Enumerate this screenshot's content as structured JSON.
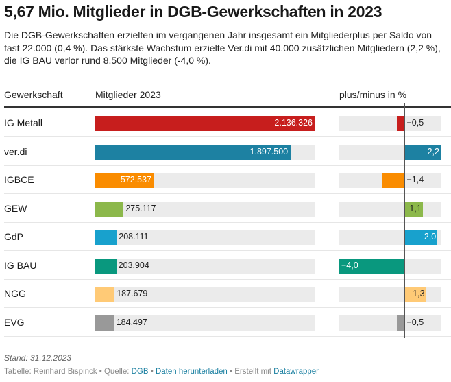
{
  "title": "5,67 Mio. Mitglieder in DGB-Gewerkschaften in 2023",
  "description": "Die DGB-Gewerkschaften erzielten im vergangenen Jahr insgesamt ein Mitgliederplus per Saldo von fast 22.000 (0,4 %). Das stärkste Wachstum erzielte Ver.di mit 40.000 zusätzlichen Mitgliedern (2,2 %), die IG BAU verlor rund 8.500 Mitglieder (-4,0 %).",
  "headers": {
    "union": "Gewerkschaft",
    "members": "Mitglieder 2023",
    "change": "plus/minus in %"
  },
  "footer": {
    "stand": "Stand: 31.12.2023",
    "table_by": "Tabelle: Reinhard Bispinck",
    "source_label": "Quelle:",
    "source_link": "DGB",
    "download_link": "Daten herunterladen",
    "created_label": "Erstellt mit",
    "created_link": "Datawrapper",
    "separator": "•"
  },
  "chart_data": {
    "type": "table",
    "title": "5,67 Mio. Mitglieder in DGB-Gewerkschaften in 2023",
    "columns": [
      "Gewerkschaft",
      "Mitglieder 2023",
      "plus/minus in %"
    ],
    "members_range": [
      0,
      2136326
    ],
    "change_range": [
      -4.0,
      2.2
    ],
    "rows": [
      {
        "name": "IG Metall",
        "members": 2136326,
        "members_label": "2.136.326",
        "change": -0.5,
        "change_label": "−0,5",
        "color": "#c71e1d"
      },
      {
        "name": "ver.di",
        "members": 1897500,
        "members_label": "1.897.500",
        "change": 2.2,
        "change_label": "2,2",
        "color": "#1d81a2"
      },
      {
        "name": "IGBCE",
        "members": 572537,
        "members_label": "572.537",
        "change": -1.4,
        "change_label": "−1,4",
        "color": "#fa8c00"
      },
      {
        "name": "GEW",
        "members": 275117,
        "members_label": "275.117",
        "change": 1.1,
        "change_label": "1,1",
        "color": "#8cb84b"
      },
      {
        "name": "GdP",
        "members": 208111,
        "members_label": "208.111",
        "change": 2.0,
        "change_label": "2,0",
        "color": "#18a1cd"
      },
      {
        "name": "IG BAU",
        "members": 203904,
        "members_label": "203.904",
        "change": -4.0,
        "change_label": "−4,0",
        "color": "#09987e"
      },
      {
        "name": "NGG",
        "members": 187679,
        "members_label": "187.679",
        "change": 1.3,
        "change_label": "1,3",
        "color": "#ffca76"
      },
      {
        "name": "EVG",
        "members": 184497,
        "members_label": "184.497",
        "change": -0.5,
        "change_label": "−0,5",
        "color": "#999999"
      }
    ]
  }
}
